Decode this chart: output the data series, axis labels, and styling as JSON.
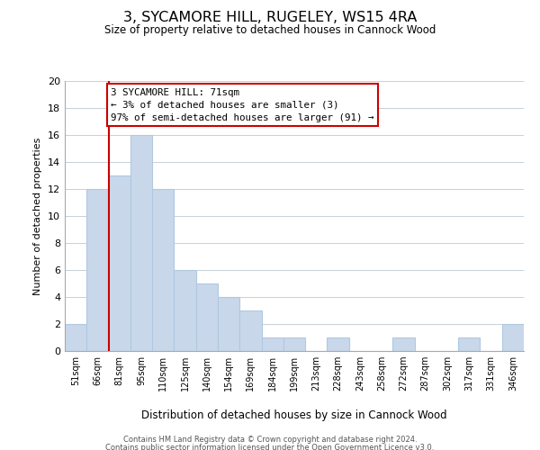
{
  "title": "3, SYCAMORE HILL, RUGELEY, WS15 4RA",
  "subtitle": "Size of property relative to detached houses in Cannock Wood",
  "xlabel": "Distribution of detached houses by size in Cannock Wood",
  "ylabel": "Number of detached properties",
  "bin_labels": [
    "51sqm",
    "66sqm",
    "81sqm",
    "95sqm",
    "110sqm",
    "125sqm",
    "140sqm",
    "154sqm",
    "169sqm",
    "184sqm",
    "199sqm",
    "213sqm",
    "228sqm",
    "243sqm",
    "258sqm",
    "272sqm",
    "287sqm",
    "302sqm",
    "317sqm",
    "331sqm",
    "346sqm"
  ],
  "bar_heights": [
    2,
    12,
    13,
    16,
    12,
    6,
    5,
    4,
    3,
    1,
    1,
    0,
    1,
    0,
    0,
    1,
    0,
    0,
    1,
    0,
    2
  ],
  "bar_color": "#c8d8ea",
  "bar_edge_color": "#b0c8e0",
  "vline_x_idx": 1,
  "vline_color": "#cc0000",
  "ylim": [
    0,
    20
  ],
  "yticks": [
    0,
    2,
    4,
    6,
    8,
    10,
    12,
    14,
    16,
    18,
    20
  ],
  "annotation_line1": "3 SYCAMORE HILL: 71sqm",
  "annotation_line2": "← 3% of detached houses are smaller (3)",
  "annotation_line3": "97% of semi-detached houses are larger (91) →",
  "annotation_box_color": "#ffffff",
  "annotation_box_edge_color": "#cc0000",
  "footer_line1": "Contains HM Land Registry data © Crown copyright and database right 2024.",
  "footer_line2": "Contains public sector information licensed under the Open Government Licence v3.0.",
  "background_color": "#ffffff",
  "grid_color": "#c8d0d8"
}
